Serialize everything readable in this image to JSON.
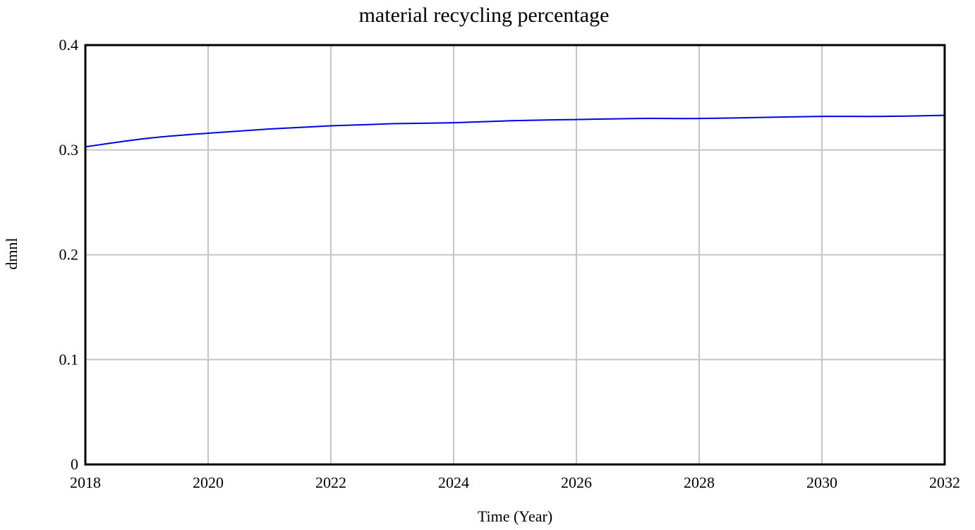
{
  "chart_data": {
    "type": "line",
    "title": "material recycling percentage",
    "xlabel": "Time (Year)",
    "ylabel": "dmnl",
    "xlim": [
      2018,
      2032
    ],
    "ylim": [
      0,
      0.4
    ],
    "x_ticks": [
      "2018",
      "2020",
      "2022",
      "2024",
      "2026",
      "2028",
      "2030",
      "2032"
    ],
    "y_ticks": [
      "0",
      "0.1",
      "0.2",
      "0.3",
      "0.4"
    ],
    "grid": true,
    "legend": "none",
    "series": [
      {
        "color": "#0000e6",
        "x": [
          2018,
          2019,
          2020,
          2021,
          2022,
          2023,
          2024,
          2025,
          2026,
          2027,
          2028,
          2029,
          2030,
          2031,
          2032
        ],
        "y": [
          0.303,
          0.311,
          0.316,
          0.32,
          0.323,
          0.325,
          0.326,
          0.328,
          0.329,
          0.33,
          0.33,
          0.331,
          0.332,
          0.332,
          0.333
        ]
      }
    ]
  }
}
